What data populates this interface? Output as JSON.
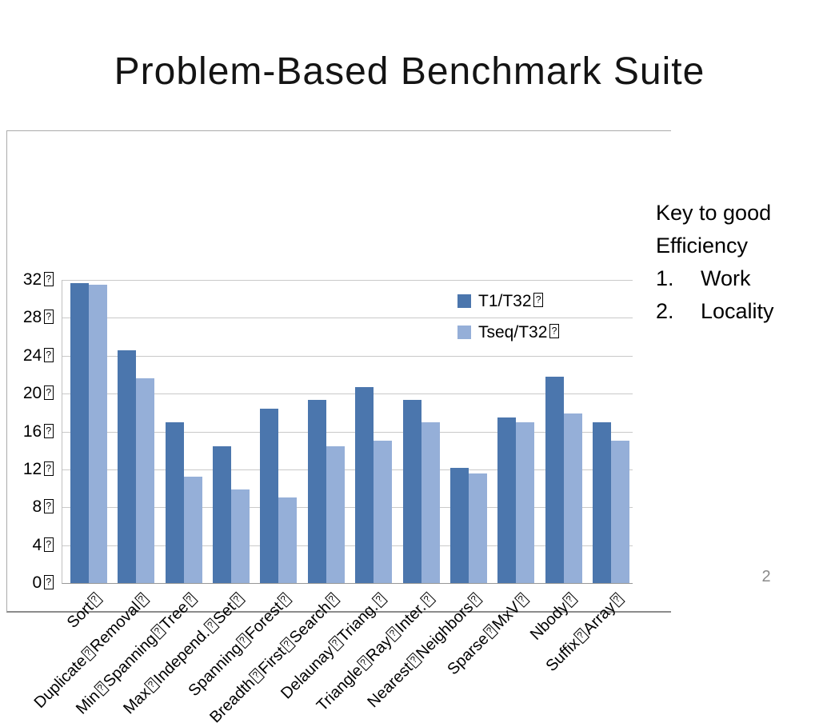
{
  "slide": {
    "title": "Problem-Based Benchmark Suite",
    "page_number": "2"
  },
  "side_note": {
    "line1": "Key to good",
    "line2": "Efficiency",
    "items": [
      {
        "num": "1.",
        "label": "Work"
      },
      {
        "num": "2.",
        "label": "Locality"
      }
    ]
  },
  "chart_data": {
    "type": "bar",
    "title": "",
    "xlabel": "",
    "ylabel": "",
    "ylim": [
      0,
      32
    ],
    "ytick_step": 4,
    "tick_suffix": "�",
    "grid": true,
    "legend_position": "inside-top-right",
    "categories": [
      "Sort�",
      "Duplicate�Removal�",
      "Min�Spanning�Tree�",
      "Max�Independ.�Set�",
      "Spanning�Forest�",
      "Breadth�First�Search�",
      "Delaunay�Triang.�",
      "Triangle�Ray�Inter.�",
      "Nearest�Neighbors�",
      "Sparse�MxV�",
      "Nbody�",
      "Suffix�Array�"
    ],
    "series": [
      {
        "name": "T1/T32�",
        "color": "#4b76ad",
        "values": [
          31.7,
          24.6,
          17.0,
          14.4,
          18.4,
          19.3,
          20.7,
          19.3,
          12.2,
          17.5,
          21.8,
          17.0
        ]
      },
      {
        "name": "Tseq/T32�",
        "color": "#95afd8",
        "values": [
          31.5,
          21.6,
          11.2,
          9.9,
          9.0,
          14.4,
          15.0,
          17.0,
          11.6,
          17.0,
          17.9,
          15.0
        ]
      }
    ],
    "colors": {
      "gridline": "#c9c9c9",
      "axis": "#979797",
      "frame": "#ababab"
    }
  }
}
